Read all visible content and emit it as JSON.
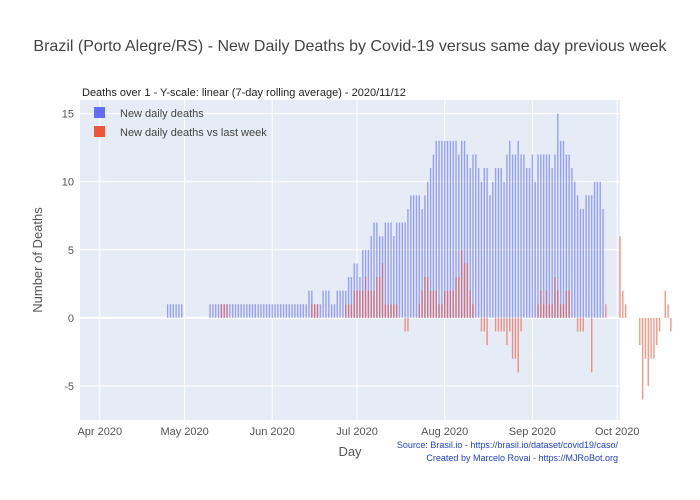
{
  "chart_data": {
    "type": "bar",
    "title": "Brazil (Porto Alegre/RS) - New Daily Deaths by Covid-19 versus same day previous week",
    "subtitle": "Deaths over 1 - Y-scale: linear (7-day rolling average) - 2020/11/12",
    "xlabel": "Day",
    "ylabel": "Number of Deaths",
    "ylim": [
      -7.5,
      16
    ],
    "yticks": [
      -5,
      0,
      5,
      10,
      15
    ],
    "x_start": "2020-03-25",
    "x_end": "2020-10-02",
    "xticks": [
      {
        "date": "2020-04-01",
        "label": "Apr 2020"
      },
      {
        "date": "2020-05-01",
        "label": "May 2020"
      },
      {
        "date": "2020-06-01",
        "label": "Jun 2020"
      },
      {
        "date": "2020-07-01",
        "label": "Jul 2020"
      },
      {
        "date": "2020-08-01",
        "label": "Aug 2020"
      },
      {
        "date": "2020-09-01",
        "label": "Sep 2020"
      },
      {
        "date": "2020-10-01",
        "label": "Oct 2020"
      }
    ],
    "legend_position": "top-left",
    "grid": true,
    "series": [
      {
        "name": "New daily deaths",
        "color": "#636efa",
        "start_date": "2020-04-25",
        "values": [
          1,
          1,
          1,
          1,
          1,
          1,
          0,
          0,
          0,
          0,
          0,
          0,
          0,
          0,
          0,
          1,
          1,
          1,
          1,
          1,
          1,
          1,
          1,
          1,
          1,
          1,
          1,
          1,
          1,
          1,
          1,
          1,
          1,
          1,
          1,
          1,
          1,
          1,
          1,
          1,
          1,
          1,
          1,
          1,
          1,
          1,
          1,
          1,
          1,
          1,
          2,
          2,
          1,
          1,
          1,
          2,
          2,
          2,
          1,
          1,
          2,
          2,
          2,
          2,
          3,
          3,
          4,
          4,
          3,
          5,
          5,
          5,
          6,
          7,
          7,
          6,
          6,
          7,
          7,
          7,
          6,
          7,
          7,
          7,
          7,
          8,
          9,
          9,
          9,
          9,
          8,
          9,
          10,
          11,
          12,
          13,
          13,
          13,
          13,
          13,
          13,
          13,
          13,
          12,
          13,
          13,
          12,
          11,
          12,
          12,
          11,
          10,
          11,
          11,
          9,
          10,
          11,
          11,
          11,
          10,
          12,
          13,
          12,
          12,
          13,
          12,
          12,
          11,
          11,
          12,
          10,
          12,
          12,
          12,
          12,
          12,
          11,
          12,
          15,
          13,
          13,
          12,
          12,
          11,
          10,
          9,
          8,
          8,
          9,
          9,
          9,
          10,
          10,
          10,
          8
        ]
      },
      {
        "name": "New daily deaths vs last week",
        "color": "#ef553b",
        "start_date": "2020-05-14",
        "values": [
          1,
          1,
          1,
          0,
          0,
          0,
          0,
          0,
          0,
          0,
          0,
          0,
          0,
          0,
          0,
          0,
          0,
          0,
          0,
          0,
          0,
          0,
          0,
          0,
          0,
          0,
          0,
          0,
          0,
          0,
          0,
          0,
          1,
          1,
          1,
          0,
          0,
          0,
          0,
          0,
          0,
          0,
          0,
          0,
          1,
          1,
          1,
          2,
          2,
          2,
          2,
          3,
          2,
          2,
          2,
          3,
          3,
          4,
          1,
          1,
          1,
          1,
          1,
          0,
          0,
          -1,
          -1,
          0,
          0,
          0,
          1,
          2,
          3,
          3,
          2,
          2,
          2,
          1,
          1,
          2,
          2,
          2,
          2,
          3,
          3,
          5,
          4,
          4,
          2,
          1,
          0,
          0,
          -1,
          -1,
          -2,
          0,
          0,
          -1,
          -1,
          -1,
          -1,
          -2,
          -1,
          -3,
          -3,
          -4,
          -1,
          0,
          0,
          0,
          0,
          0,
          1,
          2,
          1,
          2,
          1,
          1,
          3,
          2,
          1,
          1,
          2,
          2,
          0,
          0,
          -1,
          -1,
          -1,
          0,
          0,
          -4,
          0,
          0,
          0,
          0,
          1,
          0,
          0,
          0,
          0,
          6,
          2,
          1,
          0,
          0,
          0,
          0,
          -2,
          -6,
          -3,
          -5,
          -3,
          -3,
          -2,
          -1,
          0,
          2,
          1,
          -1
        ]
      }
    ]
  },
  "source": {
    "line1": "Source: Brasil.io - https://brasil.io/dataset/covid19/caso/",
    "line2": "Created by Marcelo Rovai - https://MJRoBot.org"
  }
}
